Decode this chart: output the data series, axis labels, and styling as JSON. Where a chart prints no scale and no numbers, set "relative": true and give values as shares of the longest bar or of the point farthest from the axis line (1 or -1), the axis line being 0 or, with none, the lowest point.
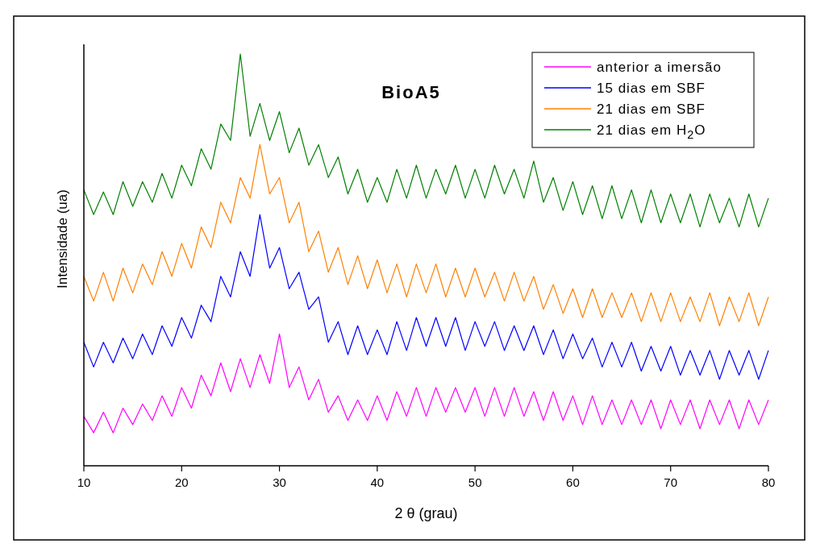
{
  "chart_data": {
    "type": "line",
    "title": "BioA5",
    "xlabel": "2 θ (grau)",
    "ylabel": "Intensidade (ua)",
    "relative": true,
    "legend": "top right",
    "marker": "none",
    "line_style": "solid",
    "grid": false,
    "xlim": [
      10,
      80
    ],
    "xticks": [
      10,
      20,
      30,
      40,
      50,
      60,
      70,
      80
    ],
    "x": [
      10,
      11,
      12,
      13,
      14,
      15,
      16,
      17,
      18,
      19,
      20,
      21,
      22,
      23,
      24,
      25,
      26,
      27,
      28,
      29,
      30,
      31,
      32,
      33,
      34,
      35,
      36,
      37,
      38,
      39,
      40,
      41,
      42,
      43,
      44,
      45,
      46,
      47,
      48,
      49,
      50,
      51,
      52,
      53,
      54,
      55,
      56,
      57,
      58,
      59,
      60,
      61,
      62,
      63,
      64,
      65,
      66,
      67,
      68,
      69,
      70,
      71,
      72,
      73,
      74,
      75,
      76,
      77,
      78,
      79,
      80
    ],
    "series": [
      {
        "name": "anterior a imersão",
        "color": "#ff00ff",
        "values": [
          0.12,
          0.08,
          0.13,
          0.08,
          0.14,
          0.1,
          0.15,
          0.11,
          0.17,
          0.12,
          0.19,
          0.14,
          0.22,
          0.17,
          0.25,
          0.18,
          0.26,
          0.19,
          0.27,
          0.2,
          0.32,
          0.19,
          0.24,
          0.16,
          0.21,
          0.13,
          0.17,
          0.11,
          0.16,
          0.11,
          0.17,
          0.11,
          0.18,
          0.12,
          0.19,
          0.12,
          0.19,
          0.13,
          0.19,
          0.13,
          0.19,
          0.12,
          0.19,
          0.12,
          0.19,
          0.12,
          0.18,
          0.11,
          0.18,
          0.11,
          0.17,
          0.1,
          0.17,
          0.1,
          0.16,
          0.1,
          0.16,
          0.1,
          0.16,
          0.09,
          0.16,
          0.1,
          0.16,
          0.09,
          0.16,
          0.1,
          0.16,
          0.09,
          0.16,
          0.1,
          0.16
        ]
      },
      {
        "name": "15 dias em SBF",
        "color": "#0000ff",
        "values": [
          0.3,
          0.24,
          0.3,
          0.25,
          0.31,
          0.26,
          0.32,
          0.27,
          0.34,
          0.29,
          0.36,
          0.31,
          0.39,
          0.35,
          0.46,
          0.41,
          0.52,
          0.46,
          0.61,
          0.48,
          0.53,
          0.43,
          0.47,
          0.38,
          0.41,
          0.3,
          0.35,
          0.27,
          0.34,
          0.27,
          0.33,
          0.27,
          0.35,
          0.28,
          0.36,
          0.29,
          0.36,
          0.29,
          0.36,
          0.28,
          0.35,
          0.29,
          0.35,
          0.28,
          0.34,
          0.28,
          0.34,
          0.27,
          0.33,
          0.26,
          0.32,
          0.26,
          0.31,
          0.24,
          0.3,
          0.24,
          0.3,
          0.23,
          0.29,
          0.23,
          0.29,
          0.22,
          0.28,
          0.22,
          0.28,
          0.21,
          0.28,
          0.22,
          0.28,
          0.21,
          0.28
        ]
      },
      {
        "name": "21 dias em SBF",
        "color": "#ff8000",
        "values": [
          0.46,
          0.4,
          0.47,
          0.4,
          0.48,
          0.42,
          0.49,
          0.44,
          0.52,
          0.46,
          0.54,
          0.48,
          0.58,
          0.53,
          0.64,
          0.59,
          0.7,
          0.65,
          0.78,
          0.66,
          0.7,
          0.59,
          0.64,
          0.52,
          0.57,
          0.47,
          0.53,
          0.44,
          0.51,
          0.43,
          0.5,
          0.42,
          0.49,
          0.41,
          0.49,
          0.42,
          0.49,
          0.41,
          0.48,
          0.41,
          0.48,
          0.41,
          0.47,
          0.4,
          0.47,
          0.4,
          0.46,
          0.38,
          0.44,
          0.37,
          0.43,
          0.36,
          0.43,
          0.36,
          0.42,
          0.36,
          0.42,
          0.35,
          0.42,
          0.35,
          0.42,
          0.35,
          0.41,
          0.35,
          0.42,
          0.34,
          0.41,
          0.35,
          0.42,
          0.34,
          0.41
        ]
      },
      {
        "name": "21 dias em H$_{2}$O",
        "color": "#008000",
        "values": [
          0.67,
          0.61,
          0.665,
          0.61,
          0.69,
          0.63,
          0.69,
          0.64,
          0.71,
          0.65,
          0.73,
          0.68,
          0.77,
          0.72,
          0.83,
          0.79,
          1.0,
          0.8,
          0.88,
          0.79,
          0.86,
          0.76,
          0.82,
          0.73,
          0.78,
          0.7,
          0.75,
          0.66,
          0.72,
          0.64,
          0.7,
          0.64,
          0.72,
          0.65,
          0.73,
          0.65,
          0.72,
          0.66,
          0.73,
          0.65,
          0.72,
          0.65,
          0.73,
          0.66,
          0.72,
          0.65,
          0.74,
          0.64,
          0.7,
          0.62,
          0.69,
          0.61,
          0.68,
          0.6,
          0.68,
          0.6,
          0.67,
          0.59,
          0.67,
          0.59,
          0.66,
          0.59,
          0.66,
          0.58,
          0.66,
          0.59,
          0.65,
          0.58,
          0.66,
          0.58,
          0.65
        ]
      }
    ]
  }
}
